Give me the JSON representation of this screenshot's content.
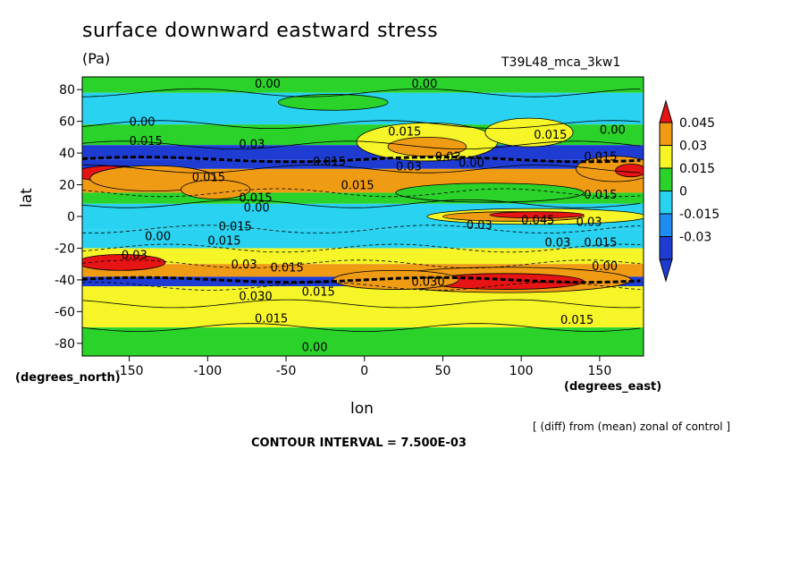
{
  "chart_data": {
    "type": "heatmap",
    "title": "surface downward eastward stress",
    "units": "(Pa)",
    "run_label": "T39L48_mca_3kw1",
    "xlabel": "lon",
    "ylabel": "lat",
    "x_units": "(degrees_east)",
    "y_units": "(degrees_north)",
    "note": "[ (diff) from (mean) zonal of control ]",
    "contour_interval": "CONTOUR INTERVAL = 7.500E-03",
    "xlim": [
      -180,
      178
    ],
    "ylim": [
      -88,
      88
    ],
    "x_ticks": [
      -150,
      -100,
      -50,
      0,
      50,
      100,
      150
    ],
    "x_tick_labels": [
      "-150",
      "-100",
      "-50",
      "0",
      "50",
      "100",
      "150"
    ],
    "y_ticks": [
      80,
      60,
      40,
      20,
      0,
      -20,
      -40,
      -60,
      -80
    ],
    "y_tick_labels": [
      "80",
      "60",
      "40",
      "20",
      "0",
      "-20",
      "-40",
      "-60",
      "-80"
    ],
    "colorbar": {
      "levels": [
        -0.045,
        -0.03,
        -0.015,
        0,
        0.015,
        0.03,
        0.045
      ],
      "labels": [
        "0.045",
        "0.03",
        "0.015",
        "0",
        "-0.015",
        "-0.03"
      ],
      "colors": [
        "#1e3cd2",
        "#1e8cf0",
        "#28d2f0",
        "#2ad22a",
        "#f5f528",
        "#f09b14",
        "#e61414"
      ]
    },
    "bands": [
      {
        "lat_range": [
          78,
          88
        ],
        "level": 0
      },
      {
        "lat_range": [
          58,
          78
        ],
        "level": -0.015
      },
      {
        "lat_range": [
          45,
          58
        ],
        "level": 0
      },
      {
        "lat_range": [
          36,
          45
        ],
        "level": -0.045
      },
      {
        "lat_range": [
          30,
          36
        ],
        "level": -0.045
      },
      {
        "lat_range": [
          15,
          30
        ],
        "level": 0.03
      },
      {
        "lat_range": [
          8,
          15
        ],
        "level": 0
      },
      {
        "lat_range": [
          -8,
          8
        ],
        "level": -0.015
      },
      {
        "lat_range": [
          -20,
          -8
        ],
        "level": -0.015
      },
      {
        "lat_range": [
          -30,
          -20
        ],
        "level": 0.015
      },
      {
        "lat_range": [
          -38,
          -30
        ],
        "level": 0.03
      },
      {
        "lat_range": [
          -44,
          -38
        ],
        "level": -0.045
      },
      {
        "lat_range": [
          -55,
          -44
        ],
        "level": 0.015
      },
      {
        "lat_range": [
          -70,
          -55
        ],
        "level": 0.015
      },
      {
        "lat_range": [
          -88,
          -70
        ],
        "level": 0
      }
    ],
    "features": [
      {
        "lon": -160,
        "lat": 27,
        "rx": 25,
        "ry": 5,
        "level": 0.045
      },
      {
        "lon": -135,
        "lat": 24,
        "rx": 40,
        "ry": 8,
        "level": 0.03
      },
      {
        "lon": -95,
        "lat": 17,
        "rx": 22,
        "ry": 6,
        "level": 0.03
      },
      {
        "lon": 40,
        "lat": 47,
        "rx": 45,
        "ry": 12,
        "level": 0.015
      },
      {
        "lon": 40,
        "lat": 44,
        "rx": 25,
        "ry": 6,
        "level": 0.03
      },
      {
        "lon": 105,
        "lat": 53,
        "rx": 28,
        "ry": 9,
        "level": 0.015
      },
      {
        "lon": 160,
        "lat": 30,
        "rx": 25,
        "ry": 8,
        "level": 0.03
      },
      {
        "lon": 170,
        "lat": 29,
        "rx": 10,
        "ry": 4,
        "level": 0.045
      },
      {
        "lon": 110,
        "lat": 0,
        "rx": 70,
        "ry": 5,
        "level": 0.015
      },
      {
        "lon": 95,
        "lat": 0,
        "rx": 45,
        "ry": 3,
        "level": 0.03
      },
      {
        "lon": 110,
        "lat": 1,
        "rx": 30,
        "ry": 2,
        "level": 0.045
      },
      {
        "lon": -155,
        "lat": -29,
        "rx": 28,
        "ry": 5,
        "level": 0.045
      },
      {
        "lon": 90,
        "lat": -40,
        "rx": 80,
        "ry": 8,
        "level": 0.03
      },
      {
        "lon": 90,
        "lat": -41,
        "rx": 50,
        "ry": 5,
        "level": 0.045
      },
      {
        "lon": 20,
        "lat": -40,
        "rx": 40,
        "ry": 6,
        "level": 0.03
      },
      {
        "lon": -20,
        "lat": 72,
        "rx": 35,
        "ry": 5,
        "level": 0
      },
      {
        "lon": 80,
        "lat": 15,
        "rx": 60,
        "ry": 6,
        "level": 0
      }
    ],
    "contour_labels": [
      {
        "lon": -70,
        "lat": 84,
        "text": "0.00"
      },
      {
        "lon": 30,
        "lat": 84,
        "text": "0.00"
      },
      {
        "lon": -150,
        "lat": 60,
        "text": "0.00"
      },
      {
        "lon": -150,
        "lat": 48,
        "text": "0.015"
      },
      {
        "lon": -110,
        "lat": 25,
        "text": "0.015"
      },
      {
        "lon": -80,
        "lat": 46,
        "text": "0.03"
      },
      {
        "lon": -33,
        "lat": 35,
        "text": "0.015"
      },
      {
        "lon": -15,
        "lat": 20,
        "text": "0.015"
      },
      {
        "lon": 15,
        "lat": 54,
        "text": "0.015"
      },
      {
        "lon": 20,
        "lat": 32,
        "text": "0.03"
      },
      {
        "lon": 45,
        "lat": 38,
        "text": "0.03"
      },
      {
        "lon": 60,
        "lat": 34,
        "text": "0.00"
      },
      {
        "lon": 108,
        "lat": 52,
        "text": "0.015"
      },
      {
        "lon": 150,
        "lat": 55,
        "text": "0.00"
      },
      {
        "lon": 140,
        "lat": 38,
        "text": "0.015"
      },
      {
        "lon": -80,
        "lat": 12,
        "text": "0.015"
      },
      {
        "lon": -77,
        "lat": 6,
        "text": "0.00"
      },
      {
        "lon": -93,
        "lat": -6,
        "text": "0.015"
      },
      {
        "lon": -140,
        "lat": -12,
        "text": "0.00"
      },
      {
        "lon": -100,
        "lat": -15,
        "text": "0.015"
      },
      {
        "lon": -155,
        "lat": -24,
        "text": "0.03"
      },
      {
        "lon": -85,
        "lat": -30,
        "text": "0.03"
      },
      {
        "lon": -60,
        "lat": -32,
        "text": "0.015"
      },
      {
        "lon": -80,
        "lat": -50,
        "text": "0.030"
      },
      {
        "lon": -40,
        "lat": -47,
        "text": "0.015"
      },
      {
        "lon": 30,
        "lat": -41,
        "text": "0.030"
      },
      {
        "lon": -70,
        "lat": -64,
        "text": "0.015"
      },
      {
        "lon": -40,
        "lat": -82,
        "text": "0.00"
      },
      {
        "lon": 140,
        "lat": 14,
        "text": "0.015"
      },
      {
        "lon": 65,
        "lat": -5,
        "text": "0.03"
      },
      {
        "lon": 100,
        "lat": -2,
        "text": "0.045"
      },
      {
        "lon": 135,
        "lat": -3,
        "text": "0.03"
      },
      {
        "lon": 115,
        "lat": -16,
        "text": "0.03"
      },
      {
        "lon": 140,
        "lat": -16,
        "text": "0.015"
      },
      {
        "lon": 145,
        "lat": -31,
        "text": "0.00"
      },
      {
        "lon": 125,
        "lat": -65,
        "text": "0.015"
      }
    ]
  }
}
